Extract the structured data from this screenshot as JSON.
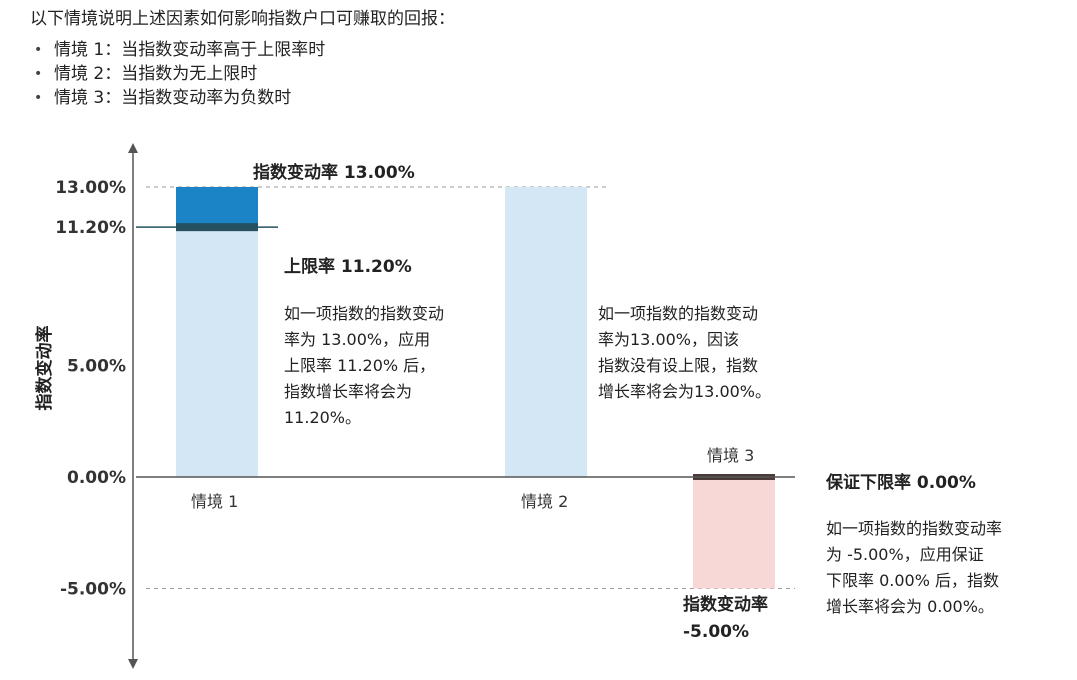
{
  "intro": {
    "heading": "以下情境说明上述因素如何影响指数户口可赚取的回报：",
    "scenarios": [
      "情境 1：当指数变动率高于上限率时",
      "情境 2：当指数为无上限时",
      "情境 3：当指数变动率为负数时"
    ]
  },
  "chart_data": {
    "type": "bar",
    "ylabel": "指数变动率",
    "ylim": [
      -5.0,
      13.0
    ],
    "yticks": [
      13.0,
      11.2,
      5.0,
      0.0,
      -5.0
    ],
    "ytick_labels": [
      "13.00%",
      "11.20%",
      "5.00%",
      "0.00%",
      "-5.00%"
    ],
    "categories": [
      "情境 1",
      "情境 2",
      "情境 3"
    ],
    "index_change": [
      13.0,
      13.0,
      -5.0
    ],
    "cap_rate": 11.2,
    "floor_rate": 0.0,
    "credited_rate": [
      11.2,
      13.0,
      0.0
    ],
    "colors": {
      "above_cap": "#1a84c7",
      "light_bar": "#d4e7f5",
      "cap_line": "#24505f",
      "negative_bar": "#f7d8d6",
      "floor_line": "#4a3a38",
      "axis": "#555555",
      "dashed": "#999999"
    },
    "annotations": {
      "top": "指数变动率 13.00%",
      "cap": "上限率 11.20%",
      "floor": "保证下限率 0.00%",
      "bottom": [
        "指数变动率",
        "-5.00%"
      ],
      "scenario3_top": "情境 3",
      "note1": [
        "如一项指数的指数变动",
        "率为 13.00%，应用",
        "上限率 11.20% 后，",
        "指数增长率将会为",
        "11.20%。"
      ],
      "note2": [
        "如一项指数的指数变动",
        "率为13.00%，因该",
        "指数没有设上限，指数",
        "增长率将会为13.00%。"
      ],
      "note3": [
        "如一项指数的指数变动率",
        "为 -5.00%，应用保证",
        "下限率 0.00% 后，指数",
        "增长率将会为 0.00%。"
      ]
    }
  }
}
